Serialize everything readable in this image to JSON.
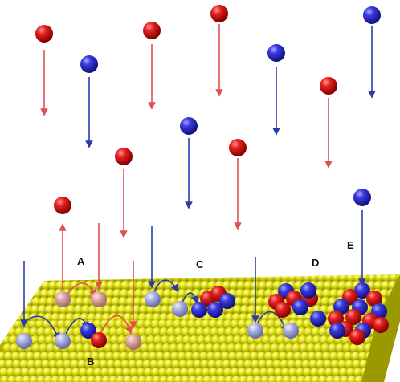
{
  "labels": {
    "a": "A",
    "b": "B",
    "c": "C",
    "d": "D",
    "e": "E"
  },
  "colors": {
    "red_atom": "#d81e1e",
    "blue_atom": "#3030d0",
    "pale_red_atom": "#e0a0a0",
    "pale_blue_atom": "#a8a8e0",
    "red_arrow": "#e05050",
    "blue_arrow": "#2a3aa8",
    "substrate": "#e0e020",
    "background": "#ffffff"
  }
}
